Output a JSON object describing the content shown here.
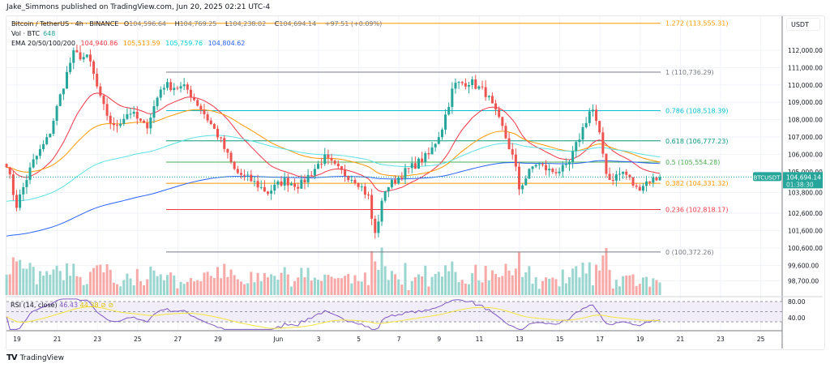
{
  "header": {
    "published": "Jake_Simmons published on TradingView.com, Jun 20, 2025 02:21 UTC-4"
  },
  "legend": {
    "symbol": "Bitcoin / TetherUS · 4h · BINANCE",
    "o_label": "O",
    "o": "104,596.64",
    "h_label": "H",
    "h": "104,769.25",
    "l_label": "L",
    "l": "104,238.02",
    "c_label": "C",
    "c": "104,694.14",
    "change": "+97.51 (+0.09%)",
    "vol_label": "Vol · BTC",
    "vol": "648",
    "ema_label": "EMA 20/50/100/200",
    "ema20": "104,940.86",
    "ema50": "105,513.59",
    "ema100": "105,759.76",
    "ema200": "104,804.62"
  },
  "axis": {
    "currency": "USDT"
  },
  "colors": {
    "up": "#26a69a",
    "down": "#ef5350",
    "ema20": "#f23645",
    "ema50": "#ff9800",
    "ema100": "#5ce1e6",
    "ema200": "#2962ff",
    "rsi": "#7e57c2",
    "rsi_ma": "#f5e43b"
  },
  "price_label": {
    "symbol": "BTCUSDT",
    "price": "104,694.14",
    "countdown": "01:38:30"
  },
  "rsi": {
    "label": "RSI (14, close)",
    "value": "46.43",
    "ma_value": "44.38",
    "levels": [
      "80.00",
      "40.00"
    ]
  },
  "footer": {
    "brand": "TradingView"
  },
  "chart_data": {
    "type": "candlestick",
    "title": "Bitcoin / TetherUS · 4h · BINANCE",
    "y_ticks": [
      "112,000.00",
      "111,000.00",
      "110,000.00",
      "109,000.00",
      "108,000.00",
      "107,000.00",
      "106,000.00",
      "105,000.00",
      "103,800.00",
      "102,600.00",
      "101,600.00",
      "100,600.00",
      "99,600.00",
      "98,700.00"
    ],
    "y_tick_values": [
      112000,
      111000,
      110000,
      109000,
      108000,
      107000,
      106000,
      105000,
      103800,
      102600,
      101600,
      100600,
      99600,
      98700
    ],
    "x_ticks": [
      "19",
      "21",
      "23",
      "25",
      "27",
      "29",
      "Jun",
      "3",
      "5",
      "7",
      "9",
      "11",
      "13",
      "15",
      "17",
      "19",
      "21",
      "23",
      "25"
    ],
    "x_tick_days": [
      0,
      2,
      4,
      6,
      8,
      10,
      13,
      15,
      17,
      19,
      21,
      23,
      25,
      27,
      29,
      31,
      33,
      35,
      37
    ],
    "x_unit": "days since May 19, 2025",
    "close_path": [
      [
        -0.52,
        105500
      ],
      [
        -0.04,
        103000
      ],
      [
        0.77,
        105500
      ],
      [
        1.57,
        107000
      ],
      [
        2.18,
        109500
      ],
      [
        2.78,
        111800
      ],
      [
        3.59,
        111500
      ],
      [
        4.19,
        109000
      ],
      [
        4.8,
        107500
      ],
      [
        5.6,
        108500
      ],
      [
        6.41,
        107500
      ],
      [
        7.22,
        110000
      ],
      [
        8.43,
        109800
      ],
      [
        9.23,
        108500
      ],
      [
        10.04,
        107000
      ],
      [
        10.85,
        105000
      ],
      [
        11.65,
        104500
      ],
      [
        12.46,
        103800
      ],
      [
        13.27,
        104500
      ],
      [
        14.07,
        104200
      ],
      [
        15.28,
        105800
      ],
      [
        16.09,
        105000
      ],
      [
        16.9,
        104500
      ],
      [
        17.5,
        103500
      ],
      [
        17.78,
        101200
      ],
      [
        18.31,
        104000
      ],
      [
        19.31,
        105000
      ],
      [
        20.52,
        106000
      ],
      [
        21.13,
        107500
      ],
      [
        21.73,
        110000
      ],
      [
        22.54,
        110200
      ],
      [
        23.35,
        109500
      ],
      [
        24.15,
        107500
      ],
      [
        24.76,
        105500
      ],
      [
        24.96,
        104000
      ],
      [
        25.77,
        105500
      ],
      [
        26.57,
        105000
      ],
      [
        27.38,
        105200
      ],
      [
        27.98,
        107000
      ],
      [
        28.59,
        108800
      ],
      [
        28.99,
        107000
      ],
      [
        29.4,
        104500
      ],
      [
        30.2,
        105000
      ],
      [
        30.81,
        104000
      ],
      [
        31.41,
        104500
      ],
      [
        32.14,
        104694.14
      ]
    ],
    "fib_levels": [
      {
        "ratio": "1.272",
        "price": 113555.31,
        "label": "1.272 (113,555.31)",
        "color": "#ff9800"
      },
      {
        "ratio": "1",
        "price": 110736.29,
        "label": "1 (110,736.29)",
        "color": "#787b86"
      },
      {
        "ratio": "0.786",
        "price": 108518.39,
        "label": "0.786 (108,518.39)",
        "color": "#00bcd4"
      },
      {
        "ratio": "0.618",
        "price": 106777.23,
        "label": "0.618 (106,777.23)",
        "color": "#089981"
      },
      {
        "ratio": "0.5",
        "price": 105554.28,
        "label": "0.5 (105,554.28)",
        "color": "#4caf50"
      },
      {
        "ratio": "0.382",
        "price": 104331.32,
        "label": "0.382 (104,331.32)",
        "color": "#ff9800"
      },
      {
        "ratio": "0.236",
        "price": 102818.17,
        "label": "0.236 (102,818.17)",
        "color": "#f23645"
      },
      {
        "ratio": "0",
        "price": 100372.26,
        "label": "0 (100,372.26)",
        "color": "#787b86"
      }
    ]
  }
}
